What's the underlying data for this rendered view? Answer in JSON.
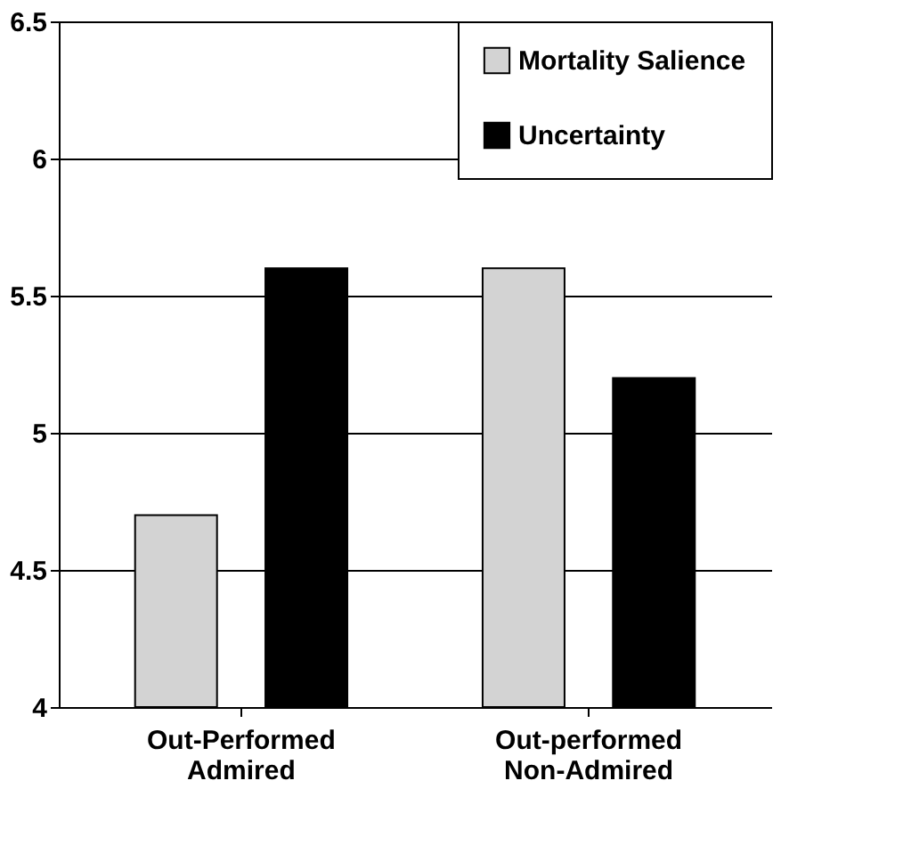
{
  "chart_data": {
    "type": "bar",
    "categories": [
      "Out-Performed\nAdmired",
      "Out-performed\nNon-Admired"
    ],
    "series": [
      {
        "name": "Mortality Salience",
        "color": "#d3d3d3",
        "values": [
          4.7,
          5.6
        ]
      },
      {
        "name": "Uncertainty",
        "color": "#000000",
        "values": [
          5.6,
          5.2
        ]
      }
    ],
    "ylim": [
      4,
      6.5
    ],
    "yticks": [
      4,
      4.5,
      5,
      5.5,
      6,
      6.5
    ],
    "grid": "y",
    "legend": "top right"
  }
}
